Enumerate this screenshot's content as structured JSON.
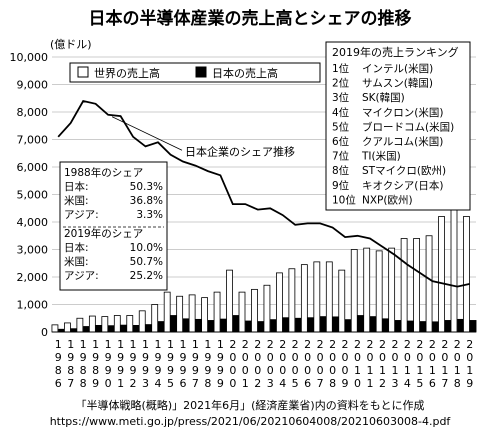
{
  "chart_data": {
    "type": "bar",
    "title": "日本の半導体産業の売上高とシェアの推移",
    "ylabel": "(億ドル)",
    "ylim": [
      0,
      10000
    ],
    "yticks": [
      "0",
      "1,000",
      "2,000",
      "3,000",
      "4,000",
      "5,000",
      "6,000",
      "7,000",
      "8,000",
      "9,000",
      "10,000"
    ],
    "ytick_values": [
      0,
      1000,
      2000,
      3000,
      4000,
      5000,
      6000,
      7000,
      8000,
      9000,
      10000
    ],
    "grid": true,
    "x": [
      1986,
      1987,
      1988,
      1989,
      1990,
      1991,
      1992,
      1993,
      1994,
      1995,
      1996,
      1997,
      1998,
      1999,
      2000,
      2001,
      2002,
      2003,
      2004,
      2005,
      2006,
      2007,
      2008,
      2009,
      2010,
      2011,
      2012,
      2013,
      2014,
      2015,
      2016,
      2017,
      2018,
      2019
    ],
    "xtick_digits": [
      [
        "1",
        "9",
        "8",
        "6"
      ],
      [
        "1",
        "9",
        "8",
        "7"
      ],
      [
        "1",
        "9",
        "8",
        "8"
      ],
      [
        "1",
        "9",
        "8",
        "9"
      ],
      [
        "1",
        "9",
        "9",
        "0"
      ],
      [
        "1",
        "9",
        "9",
        "1"
      ],
      [
        "1",
        "9",
        "9",
        "2"
      ],
      [
        "1",
        "9",
        "9",
        "3"
      ],
      [
        "1",
        "9",
        "9",
        "4"
      ],
      [
        "1",
        "9",
        "9",
        "5"
      ],
      [
        "1",
        "9",
        "9",
        "6"
      ],
      [
        "1",
        "9",
        "9",
        "7"
      ],
      [
        "1",
        "9",
        "9",
        "8"
      ],
      [
        "1",
        "9",
        "9",
        "9"
      ],
      [
        "2",
        "0",
        "0",
        "0"
      ],
      [
        "2",
        "0",
        "0",
        "1"
      ],
      [
        "2",
        "0",
        "0",
        "2"
      ],
      [
        "2",
        "0",
        "0",
        "3"
      ],
      [
        "2",
        "0",
        "0",
        "4"
      ],
      [
        "2",
        "0",
        "0",
        "5"
      ],
      [
        "2",
        "0",
        "0",
        "6"
      ],
      [
        "2",
        "0",
        "0",
        "7"
      ],
      [
        "2",
        "0",
        "0",
        "8"
      ],
      [
        "2",
        "0",
        "0",
        "9"
      ],
      [
        "2",
        "0",
        "1",
        "0"
      ],
      [
        "2",
        "0",
        "1",
        "1"
      ],
      [
        "2",
        "0",
        "1",
        "2"
      ],
      [
        "2",
        "0",
        "1",
        "3"
      ],
      [
        "2",
        "0",
        "1",
        "4"
      ],
      [
        "2",
        "0",
        "1",
        "5"
      ],
      [
        "2",
        "0",
        "1",
        "6"
      ],
      [
        "2",
        "0",
        "1",
        "7"
      ],
      [
        "2",
        "0",
        "1",
        "8"
      ],
      [
        "2",
        "0",
        "1",
        "9"
      ]
    ],
    "series": [
      {
        "name": "世界の売上高",
        "color": "#ffffff",
        "values": [
          260,
          330,
          500,
          580,
          560,
          600,
          600,
          770,
          1000,
          1450,
          1300,
          1350,
          1250,
          1450,
          2250,
          1450,
          1550,
          1700,
          2150,
          2300,
          2450,
          2550,
          2550,
          2250,
          3000,
          3050,
          2950,
          3050,
          3400,
          3400,
          3500,
          4200,
          4750,
          4200
        ]
      },
      {
        "name": "日本の売上高",
        "color": "#000000",
        "values": [
          100,
          120,
          200,
          240,
          230,
          250,
          240,
          270,
          380,
          600,
          480,
          460,
          420,
          470,
          600,
          400,
          380,
          450,
          520,
          500,
          520,
          560,
          550,
          450,
          600,
          560,
          480,
          420,
          400,
          380,
          370,
          420,
          460,
          420
        ]
      },
      {
        "name": "日本企業のシェア推移",
        "color": "#000000",
        "type": "line",
        "values": [
          7100,
          7600,
          8400,
          8300,
          7900,
          7850,
          7100,
          6750,
          6900,
          6450,
          6200,
          6050,
          5850,
          5700,
          4650,
          4650,
          4450,
          4500,
          4250,
          3900,
          3950,
          3950,
          3800,
          3450,
          3500,
          3400,
          3100,
          2800,
          2450,
          2150,
          1850,
          1750,
          1650,
          1750
        ]
      }
    ],
    "line_label": "日本企業のシェア推移",
    "share_box": {
      "sections": [
        {
          "heading": "1988年のシェア",
          "rows": [
            {
              "label": "日本:",
              "value": "50.3%"
            },
            {
              "label": "米国:",
              "value": "36.8%"
            },
            {
              "label": "アジア:",
              "value": "3.3%"
            }
          ]
        },
        {
          "heading": "2019年のシェア",
          "rows": [
            {
              "label": "日本:",
              "value": "10.0%"
            },
            {
              "label": "米国:",
              "value": "50.7%"
            },
            {
              "label": "アジア:",
              "value": "25.2%"
            }
          ]
        }
      ]
    },
    "ranking": {
      "heading": "2019年の売上ランキング",
      "rows": [
        {
          "rank": "1位",
          "name": "インテル(米国)"
        },
        {
          "rank": "2位",
          "name": "サムスン(韓国)"
        },
        {
          "rank": "3位",
          "name": "SK(韓国)"
        },
        {
          "rank": "4位",
          "name": "マイクロン(米国)"
        },
        {
          "rank": "5位",
          "name": "ブロードコム(米国)"
        },
        {
          "rank": "6位",
          "name": "クアルコム(米国)"
        },
        {
          "rank": "7位",
          "name": "TI(米国)"
        },
        {
          "rank": "8位",
          "name": "STマイクロ(欧州)"
        },
        {
          "rank": "9位",
          "name": "キオクシア(日本)"
        },
        {
          "rank": "10位",
          "name": "NXP(欧州)"
        }
      ]
    },
    "source_lines": [
      "「半導体戦略(概略)」2021年6月」(経済産業省)内の資料をもとに作成",
      "https://www.meti.go.jp/press/2021/06/20210604008/20210603008-4.pdf"
    ]
  }
}
